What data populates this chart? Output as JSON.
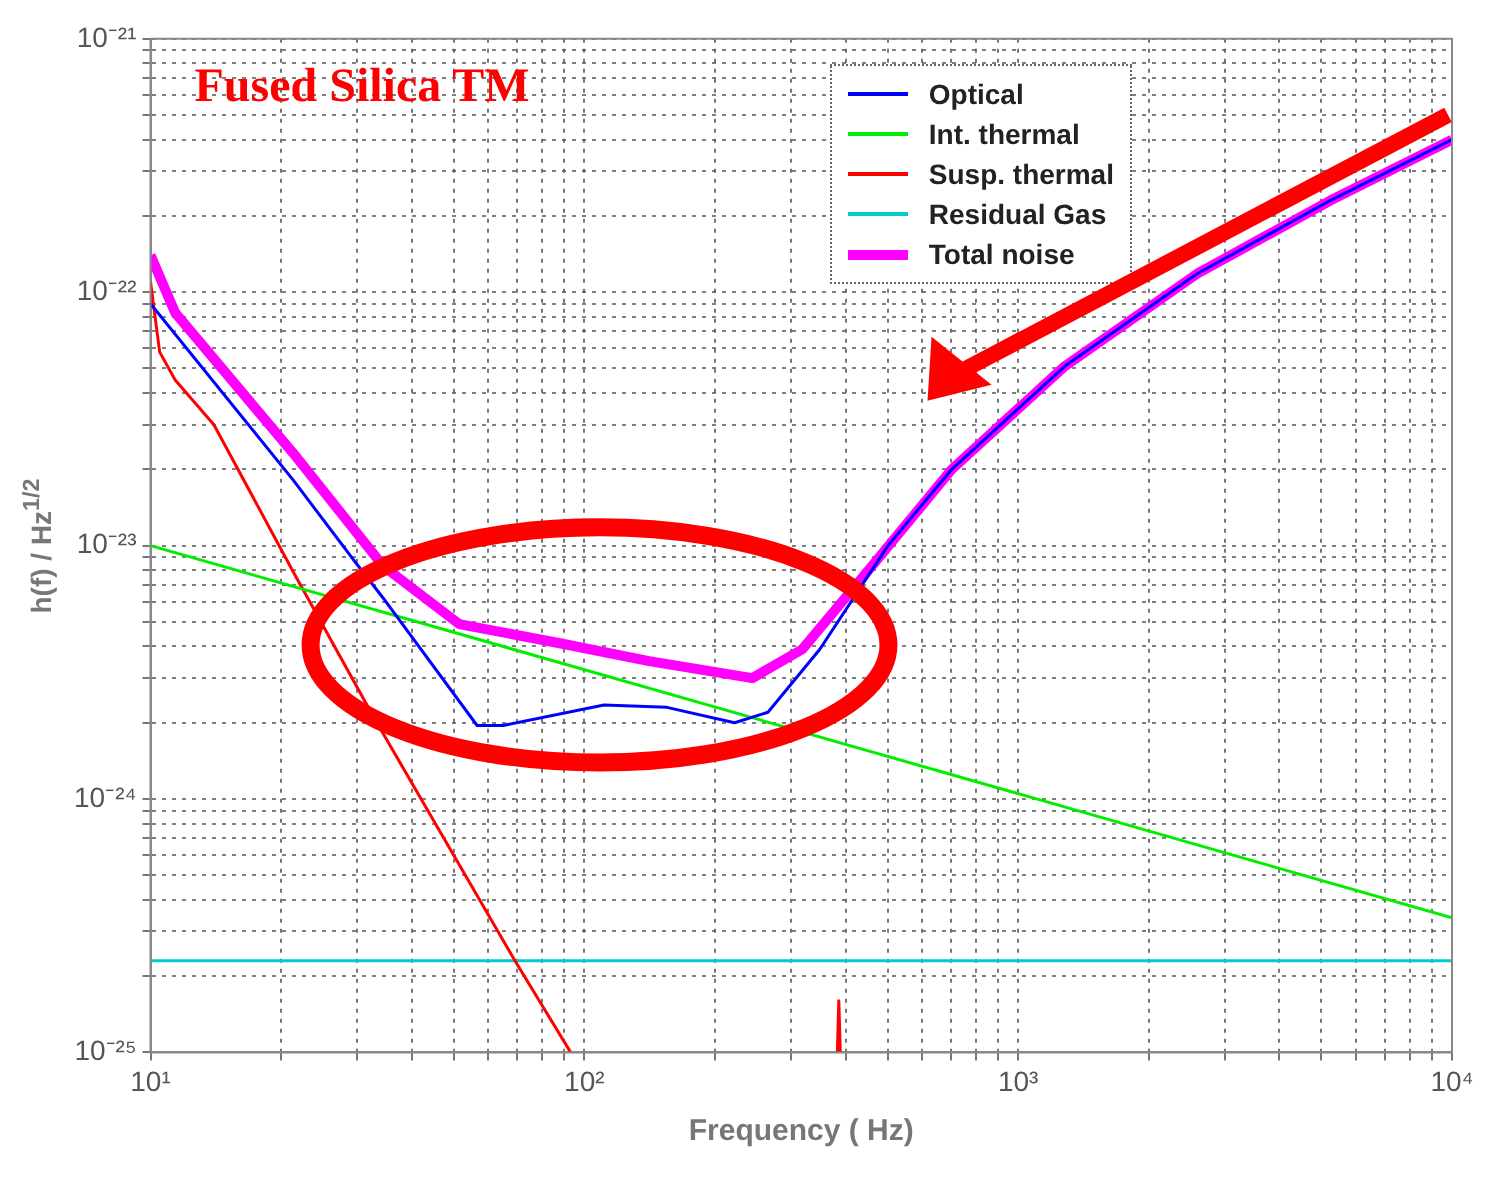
{
  "chart_data": {
    "type": "line",
    "title": "Fused Silica TM",
    "xlabel": "Frequency ( Hz)",
    "ylabel": "h(f) / Hz$^{1/2}$",
    "log": "xy",
    "grid": true,
    "legend": "top right",
    "marker": "none",
    "line_style": "solid",
    "xlim": [
      10,
      10000
    ],
    "ylim": [
      1e-25,
      1e-21
    ],
    "xticks": [
      {
        "value": 10,
        "label": "10¹"
      },
      {
        "value": 20,
        "label": null
      },
      {
        "value": 30,
        "label": null
      },
      {
        "value": 40,
        "label": null
      },
      {
        "value": 50,
        "label": null
      },
      {
        "value": 60,
        "label": null
      },
      {
        "value": 70,
        "label": null
      },
      {
        "value": 80,
        "label": null
      },
      {
        "value": 90,
        "label": null
      },
      {
        "value": 100,
        "label": "10²"
      },
      {
        "value": 200,
        "label": null
      },
      {
        "value": 300,
        "label": null
      },
      {
        "value": 400,
        "label": null
      },
      {
        "value": 500,
        "label": null
      },
      {
        "value": 600,
        "label": null
      },
      {
        "value": 700,
        "label": null
      },
      {
        "value": 800,
        "label": null
      },
      {
        "value": 900,
        "label": null
      },
      {
        "value": 1000,
        "label": "10³"
      },
      {
        "value": 2000,
        "label": null
      },
      {
        "value": 3000,
        "label": null
      },
      {
        "value": 4000,
        "label": null
      },
      {
        "value": 5000,
        "label": null
      },
      {
        "value": 6000,
        "label": null
      },
      {
        "value": 7000,
        "label": null
      },
      {
        "value": 8000,
        "label": null
      },
      {
        "value": 9000,
        "label": null
      },
      {
        "value": 10000,
        "label": "10⁴"
      }
    ],
    "yticks": [
      {
        "value": 1e-25,
        "label": "10⁻²⁵"
      },
      {
        "value": 2e-25,
        "label": null
      },
      {
        "value": 3e-25,
        "label": null
      },
      {
        "value": 4e-25,
        "label": null
      },
      {
        "value": 5e-25,
        "label": null
      },
      {
        "value": 6e-25,
        "label": null
      },
      {
        "value": 7e-25,
        "label": null
      },
      {
        "value": 8e-25,
        "label": null
      },
      {
        "value": 9e-25,
        "label": null
      },
      {
        "value": 1e-24,
        "label": "10⁻²⁴"
      },
      {
        "value": 2e-24,
        "label": null
      },
      {
        "value": 3e-24,
        "label": null
      },
      {
        "value": 4e-24,
        "label": null
      },
      {
        "value": 5e-24,
        "label": null
      },
      {
        "value": 6e-24,
        "label": null
      },
      {
        "value": 7e-24,
        "label": null
      },
      {
        "value": 8e-24,
        "label": null
      },
      {
        "value": 9e-24,
        "label": null
      },
      {
        "value": 1e-23,
        "label": "10⁻²³"
      },
      {
        "value": 2e-23,
        "label": null
      },
      {
        "value": 3e-23,
        "label": null
      },
      {
        "value": 4e-23,
        "label": null
      },
      {
        "value": 5e-23,
        "label": null
      },
      {
        "value": 6e-23,
        "label": null
      },
      {
        "value": 7e-23,
        "label": null
      },
      {
        "value": 8e-23,
        "label": null
      },
      {
        "value": 9e-23,
        "label": null
      },
      {
        "value": 1e-22,
        "label": "10⁻²²"
      },
      {
        "value": 2e-22,
        "label": null
      },
      {
        "value": 3e-22,
        "label": null
      },
      {
        "value": 4e-22,
        "label": null
      },
      {
        "value": 5e-22,
        "label": null
      },
      {
        "value": 6e-22,
        "label": null
      },
      {
        "value": 7e-22,
        "label": null
      },
      {
        "value": 8e-22,
        "label": null
      },
      {
        "value": 9e-22,
        "label": null
      },
      {
        "value": 1e-21,
        "label": "10⁻²¹"
      }
    ],
    "series": [
      {
        "name": "Optical",
        "color": "#0000ff",
        "x": [
          10,
          21.4,
          29.5,
          34.4,
          56.6,
          65,
          111,
          155,
          222,
          265,
          349,
          501,
          703,
          1280,
          2580,
          5240,
          10000
        ],
        "values": [
          9e-23,
          1.8e-23,
          8.7e-24,
          6.2e-24,
          1.95e-24,
          1.95e-24,
          2.35e-24,
          2.3e-24,
          2e-24,
          2.2e-24,
          3.9e-24,
          1e-23,
          2e-23,
          5.1e-23,
          1.18e-22,
          2.3e-22,
          4e-22
        ]
      },
      {
        "name": "Int. thermal",
        "color": "#00ee00",
        "x": [
          10,
          10000
        ],
        "values": [
          1e-23,
          3.4e-25
        ]
      },
      {
        "name": "Susp. thermal",
        "color": "#ff0000",
        "x": [
          10,
          10.5,
          11.4,
          14,
          21.4,
          32.7,
          69.2,
          93,
          95,
          383,
          386,
          389
        ],
        "values": [
          1.1e-22,
          5.8e-23,
          4.5e-23,
          3e-23,
          7.8e-24,
          2.1e-24,
          2.3e-25,
          1e-25,
          null,
          1e-25,
          1.6e-25,
          1e-25
        ]
      },
      {
        "name": "Residual Gas",
        "color": "#00cccc",
        "x": [
          10,
          10000
        ],
        "values": [
          2.3e-25,
          2.3e-25
        ]
      },
      {
        "name": "Total noise",
        "color": "#ff00ff",
        "x": [
          10,
          11.4,
          21.4,
          34.4,
          51.5,
          89,
          141,
          244,
          318,
          460,
          703,
          1280,
          2580,
          5240,
          10000
        ],
        "values": [
          1.4e-22,
          8.3e-23,
          2.3e-23,
          8.3e-24,
          4.9e-24,
          4.1e-24,
          3.5e-24,
          3e-24,
          3.9e-24,
          8.3e-24,
          2e-23,
          5.1e-23,
          1.18e-22,
          2.3e-22,
          4e-22
        ]
      }
    ]
  }
}
